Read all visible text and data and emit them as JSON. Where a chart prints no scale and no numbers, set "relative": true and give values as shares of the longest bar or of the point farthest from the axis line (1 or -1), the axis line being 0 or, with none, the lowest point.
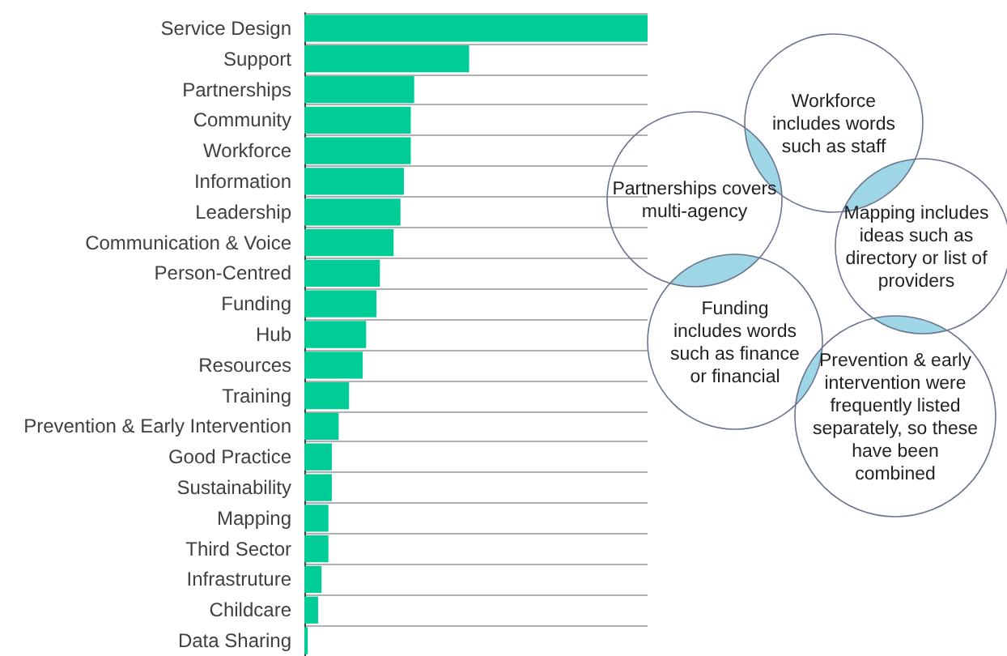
{
  "chart_data": {
    "type": "bar",
    "orientation": "horizontal",
    "relative": true,
    "grid": "y",
    "color": "#00cc96",
    "categories": [
      "Service Design",
      "Support",
      "Partnerships",
      "Community",
      "Workforce",
      "Information",
      "Leadership",
      "Communication & Voice",
      "Person-Centred",
      "Funding",
      "Hub",
      "Resources",
      "Training",
      "Prevention & Early Intervention",
      "Good Practice",
      "Sustainability",
      "Mapping",
      "Third Sector",
      "Infrastruture",
      "Childcare",
      "Data Sharing"
    ],
    "values": [
      1,
      0.48,
      0.32,
      0.31,
      0.31,
      0.29,
      0.28,
      0.26,
      0.22,
      0.21,
      0.18,
      0.17,
      0.13,
      0.1,
      0.08,
      0.08,
      0.07,
      0.07,
      0.05,
      0.04,
      0.01
    ],
    "annotations": [
      "Workforce\nincludes words\nsuch as staff",
      "Partnerships covers\nmulti-agency",
      "Mapping includes\nideas such as\ndirectory or list of\nproviders",
      "Funding\nincludes words\nsuch as finance\nor financial",
      "Prevention & early\nintervention were\nfrequently listed\nseparately, so these\nhave been\ncombined"
    ]
  }
}
